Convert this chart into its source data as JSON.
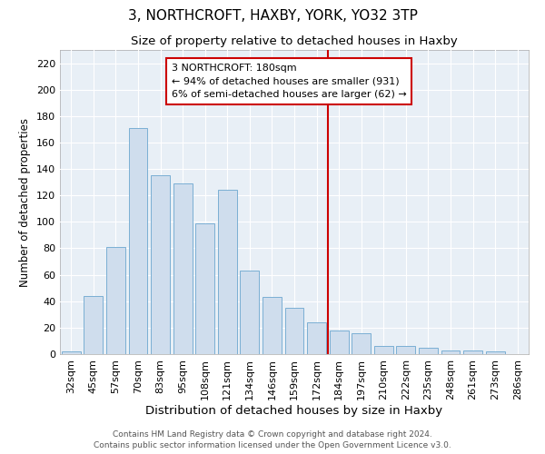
{
  "title": "3, NORTHCROFT, HAXBY, YORK, YO32 3TP",
  "subtitle": "Size of property relative to detached houses in Haxby",
  "xlabel": "Distribution of detached houses by size in Haxby",
  "ylabel": "Number of detached properties",
  "bar_labels": [
    "32sqm",
    "45sqm",
    "57sqm",
    "70sqm",
    "83sqm",
    "95sqm",
    "108sqm",
    "121sqm",
    "134sqm",
    "146sqm",
    "159sqm",
    "172sqm",
    "184sqm",
    "197sqm",
    "210sqm",
    "222sqm",
    "235sqm",
    "248sqm",
    "261sqm",
    "273sqm",
    "286sqm"
  ],
  "bar_values": [
    2,
    44,
    81,
    171,
    135,
    129,
    99,
    124,
    63,
    43,
    35,
    24,
    18,
    16,
    6,
    6,
    5,
    3,
    3,
    2,
    0
  ],
  "bar_color": "#cfdded",
  "bar_edgecolor": "#7aafd4",
  "ylim": [
    0,
    230
  ],
  "yticks": [
    0,
    20,
    40,
    60,
    80,
    100,
    120,
    140,
    160,
    180,
    200,
    220
  ],
  "vline_index": 11.5,
  "vline_color": "#cc0000",
  "annotation_title": "3 NORTHCROFT: 180sqm",
  "annotation_line1": "← 94% of detached houses are smaller (931)",
  "annotation_line2": "6% of semi-detached houses are larger (62) →",
  "footer1": "Contains HM Land Registry data © Crown copyright and database right 2024.",
  "footer2": "Contains public sector information licensed under the Open Government Licence v3.0.",
  "title_fontsize": 11,
  "subtitle_fontsize": 9.5,
  "xlabel_fontsize": 9.5,
  "ylabel_fontsize": 8.5,
  "tick_fontsize": 8,
  "ann_fontsize": 8,
  "footer_fontsize": 6.5,
  "background_color": "#e8eff6",
  "grid_color": "#ffffff",
  "spine_color": "#aaaaaa"
}
